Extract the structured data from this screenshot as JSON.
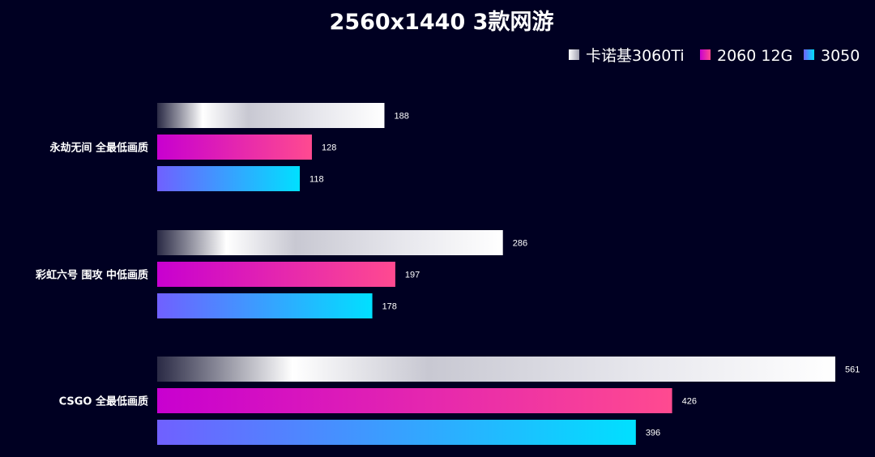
{
  "chart_data": {
    "type": "bar",
    "orientation": "horizontal",
    "title": "2560x1440  3款网游",
    "categories": [
      "永劫无间 全最低画质",
      "彩虹六号 围攻 中低画质",
      "CSGO 全最低画质"
    ],
    "series": [
      {
        "name": "卡诺基3060Ti",
        "values": [
          188,
          286,
          561
        ]
      },
      {
        "name": "2060 12G",
        "values": [
          128,
          197,
          426
        ]
      },
      {
        "name": "3050",
        "values": [
          118,
          178,
          396
        ]
      }
    ],
    "xlim": [
      0,
      561
    ],
    "grid": false,
    "legend": "top-right",
    "colors": {
      "background": "#000022",
      "series_0": [
        "#2a2a45",
        "#ffffff",
        "#c8c8d2",
        "#ffffff"
      ],
      "series_1": [
        "#c800d0",
        "#ff4a90"
      ],
      "series_2": [
        "#7060ff",
        "#00e0ff"
      ]
    }
  }
}
